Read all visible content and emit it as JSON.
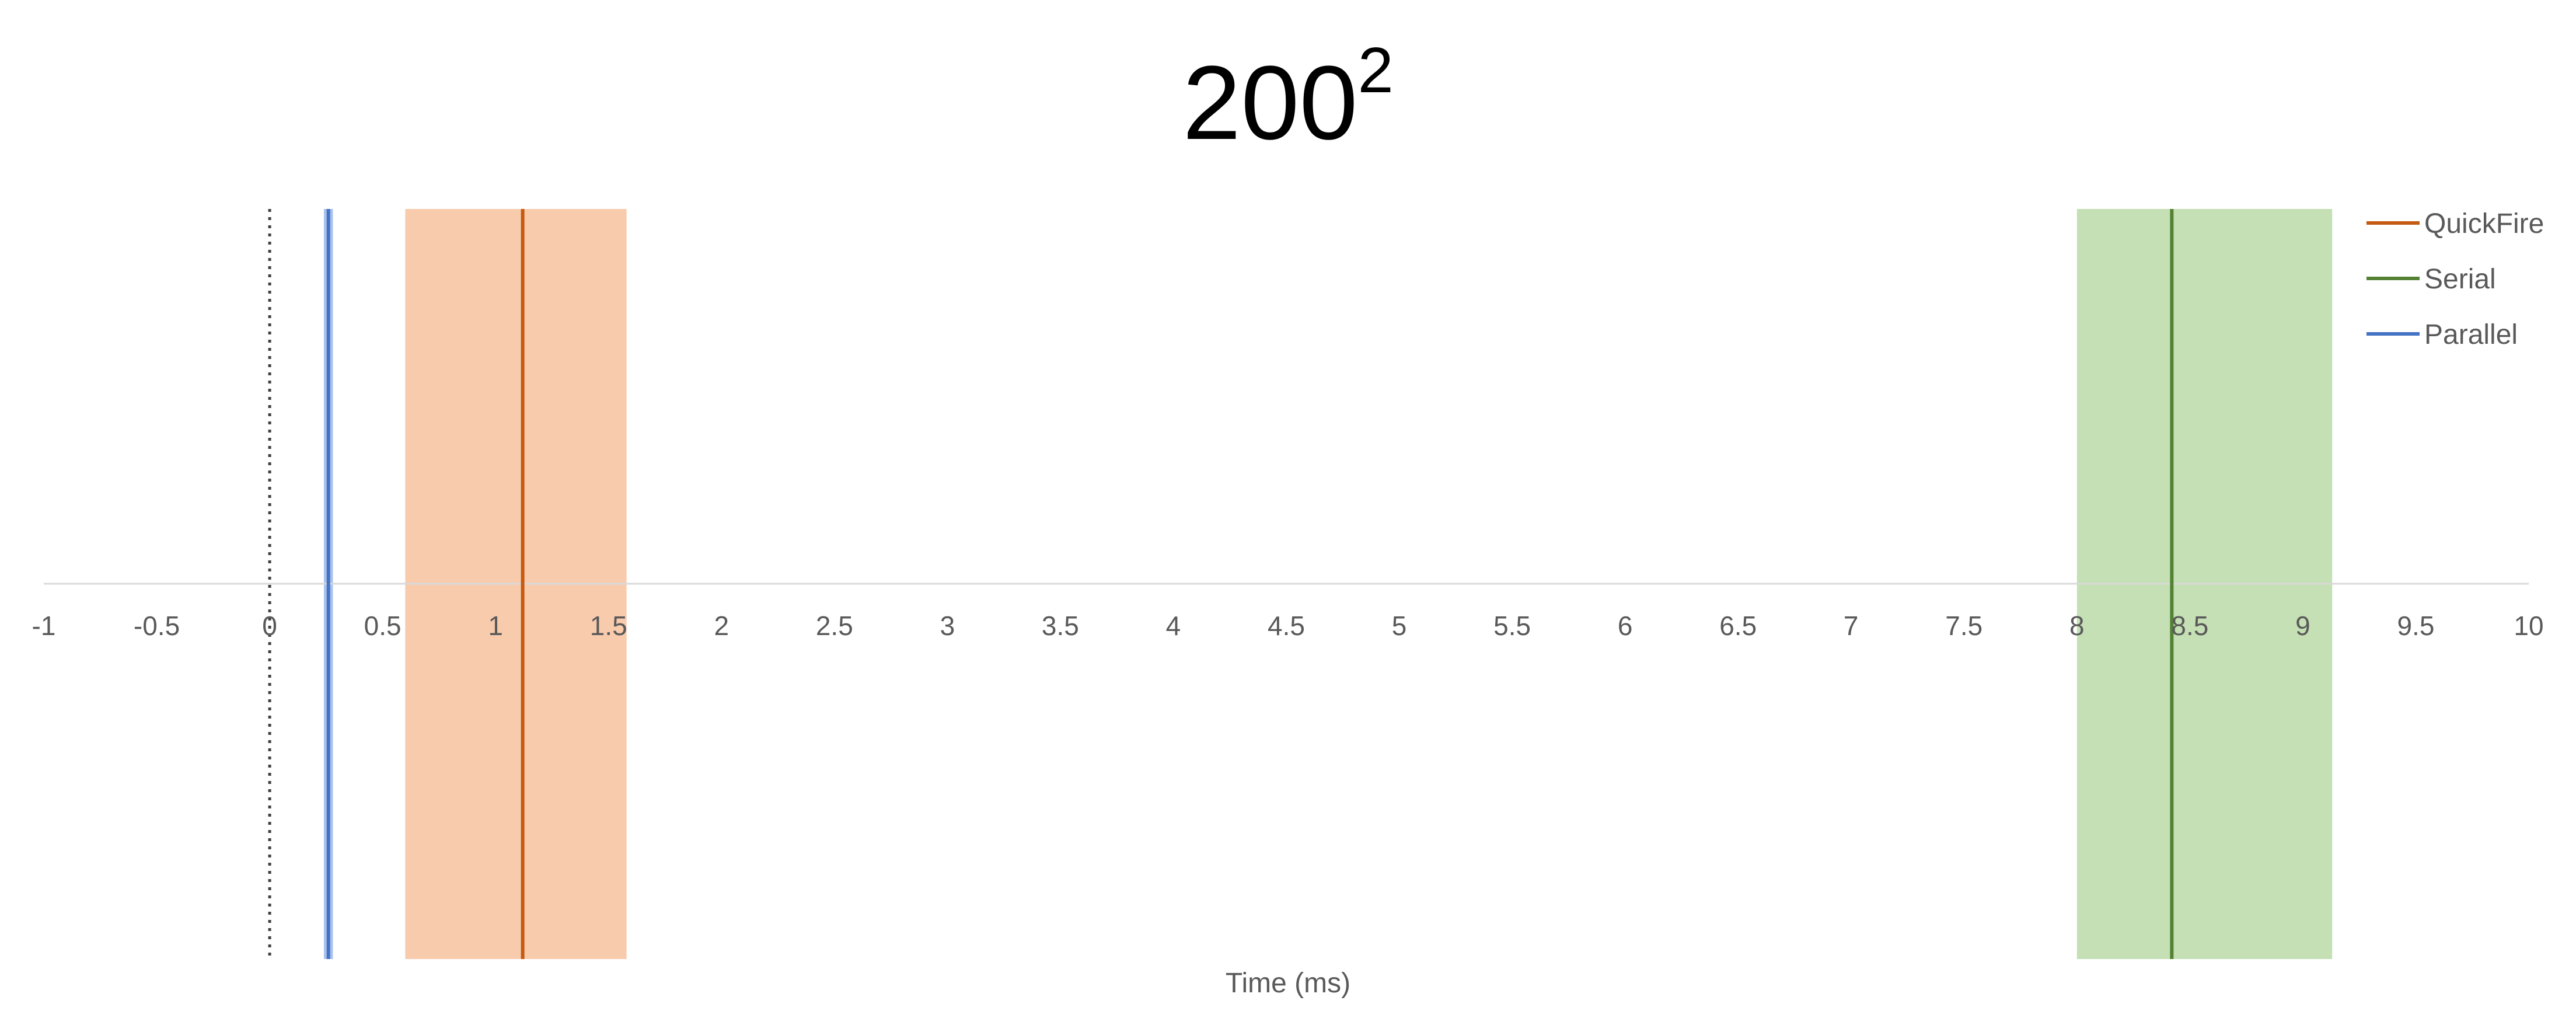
{
  "chart_data": {
    "type": "timeline-range",
    "title_base": "200",
    "title_superscript": "2",
    "xlabel": "Time (ms)",
    "xlim": [
      -1,
      10
    ],
    "xticks": [
      "-1",
      "-0.5",
      "0",
      "0.5",
      "1",
      "1.5",
      "2",
      "2.5",
      "3",
      "3.5",
      "4",
      "4.5",
      "5",
      "5.5",
      "6",
      "6.5",
      "7",
      "7.5",
      "8",
      "8.5",
      "9",
      "9.5",
      "10"
    ],
    "reference_line": {
      "x": 0,
      "style": "dotted",
      "color": "#404040"
    },
    "series": [
      {
        "name": "QuickFire",
        "value": 1.12,
        "range": [
          0.6,
          1.58
        ],
        "line_color": "#C55A11",
        "band_color": "#F8CBAD"
      },
      {
        "name": "Serial",
        "value": 8.42,
        "range": [
          8.0,
          9.13
        ],
        "line_color": "#548235",
        "band_color": "#C5E0B4"
      },
      {
        "name": "Parallel",
        "value": 0.26,
        "range": [
          0.24,
          0.28
        ],
        "line_color": "#4472C4",
        "band_color": "#A9C2ED"
      }
    ],
    "legend_position": "top-right",
    "grid": false
  }
}
